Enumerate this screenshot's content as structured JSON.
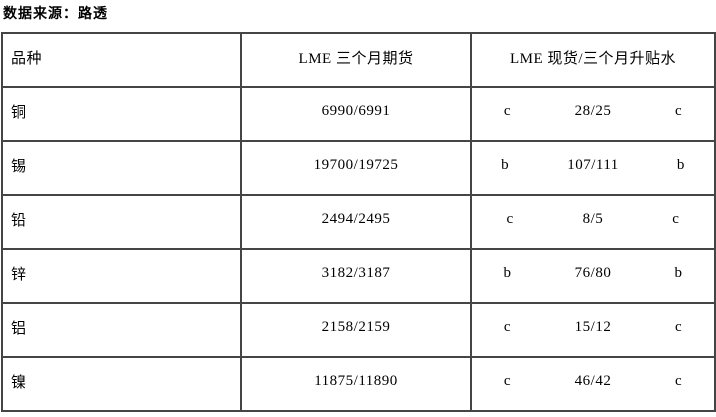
{
  "source_note": "数据来源：路透",
  "table": {
    "headers": {
      "variety": "品种",
      "futures": "LME 三个月期货",
      "premium": "LME 现货/三个月升贴水"
    },
    "rows": [
      {
        "name": "铜",
        "futures": "6990/6991",
        "flag_left": "c",
        "premium": "28/25",
        "flag_right": "c"
      },
      {
        "name": "锡",
        "futures": "19700/19725",
        "flag_left": "b",
        "premium": "107/111",
        "flag_right": "b"
      },
      {
        "name": "铅",
        "futures": "2494/2495",
        "flag_left": "c",
        "premium": "8/5",
        "flag_right": "c"
      },
      {
        "name": "锌",
        "futures": "3182/3187",
        "flag_left": "b",
        "premium": "76/80",
        "flag_right": "b"
      },
      {
        "name": "铝",
        "futures": "2158/2159",
        "flag_left": "c",
        "premium": "15/12",
        "flag_right": "c"
      },
      {
        "name": "镍",
        "futures": "11875/11890",
        "flag_left": "c",
        "premium": "46/42",
        "flag_right": "c"
      }
    ]
  },
  "colors": {
    "border": "#454545",
    "text": "#000000",
    "background": "#ffffff"
  }
}
